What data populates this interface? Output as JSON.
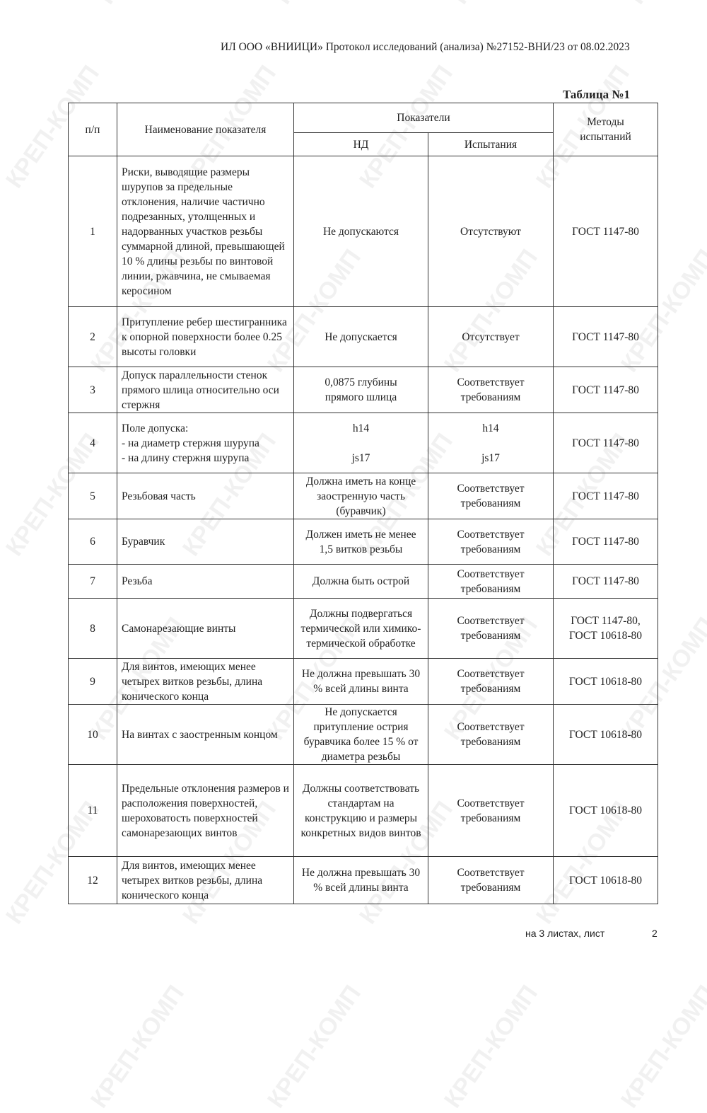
{
  "watermark": "КРЕП-КОМП",
  "header": "ИЛ ООО «ВНИИЦИ» Протокол исследований (анализа)  №27152-ВНИ/23 от  08.02.2023",
  "table_title": "Таблица №1",
  "columns": {
    "num": "п/п",
    "name": "Наименование показателя",
    "indicators": "Показатели",
    "nd": "НД",
    "test": "Испытания",
    "methods": "Методы\nиспытаний"
  },
  "rows": [
    {
      "num": "1",
      "name": "Риски, выводящие размеры шурупов за предельные отклонения, наличие частично подрезанных, утолщенных и надорванных участков резьбы суммарной длиной, превышающей 10 % длины резьбы по винтовой линии, ржавчина, не смываемая керосином",
      "nd": "Не допускаются",
      "test": "Отсутствуют",
      "method": "ГОСТ 1147-80"
    },
    {
      "num": "2",
      "name": "Притупление ребер шестигранника к опорной поверхности более 0.25 высоты головки",
      "nd": "Не допускается",
      "test": "Отсутствует",
      "method": "ГОСТ 1147-80"
    },
    {
      "num": "3",
      "name": "Допуск параллельности стенок прямого шлица относительно оси стержня",
      "nd": "0,0875 глубины\nпрямого шлица",
      "test": "Соответствует\nтребованиям",
      "method": "ГОСТ 1147-80"
    },
    {
      "num": "4",
      "name": "Поле допуска:\n- на диаметр стержня шурупа\n- на длину стержня шурупа",
      "nd": "h14\n\njs17",
      "test": "h14\n\njs17",
      "method": "ГОСТ 1147-80"
    },
    {
      "num": "5",
      "name": "Резьбовая часть",
      "nd": "Должна иметь на конце заостренную часть (буравчик)",
      "test": "Соответствует\nтребованиям",
      "method": "ГОСТ 1147-80"
    },
    {
      "num": "6",
      "name": "Буравчик",
      "nd": "Должен иметь не менее 1,5 витков резьбы",
      "test": "Соответствует\nтребованиям",
      "method": "ГОСТ 1147-80"
    },
    {
      "num": "7",
      "name": "Резьба",
      "nd": "Должна быть острой",
      "test": "Соответствует\nтребованиям",
      "method": "ГОСТ 1147-80"
    },
    {
      "num": "8",
      "name": "Самонарезающие винты",
      "nd": "Должны подвергаться термической или химико-термической обработке",
      "test": "Соответствует\nтребованиям",
      "method": "ГОСТ 1147-80,\nГОСТ 10618-80"
    },
    {
      "num": "9",
      "name": "Для винтов, имеющих менее четырех витков резьбы, длина конического конца",
      "nd": "Не должна превышать 30 % всей длины винта",
      "test": "Соответствует\nтребованиям",
      "method": "ГОСТ 10618-80"
    },
    {
      "num": "10",
      "name": "На винтах с заостренным концом",
      "nd": "Не допускается притупление острия буравчика более 15 % от диаметра резьбы",
      "test": "Соответствует\nтребованиям",
      "method": "ГОСТ 10618-80"
    },
    {
      "num": "11",
      "name": "Предельные отклонения размеров и расположения поверхностей, шероховатость поверхностей самонарезающих винтов",
      "nd": "Должны соответствовать стандартам на конструкцию и размеры конкретных видов винтов",
      "test": "Соответствует\nтребованиям",
      "method": "ГОСТ 10618-80"
    },
    {
      "num": "12",
      "name": "Для винтов, имеющих менее четырех витков резьбы, длина конического конца",
      "nd": "Не должна превышать 30 % всей длины винта",
      "test": "Соответствует\nтребованиям",
      "method": "ГОСТ 10618-80"
    }
  ],
  "footer": {
    "sheets": "на 3  листах, лист",
    "page": "2"
  }
}
